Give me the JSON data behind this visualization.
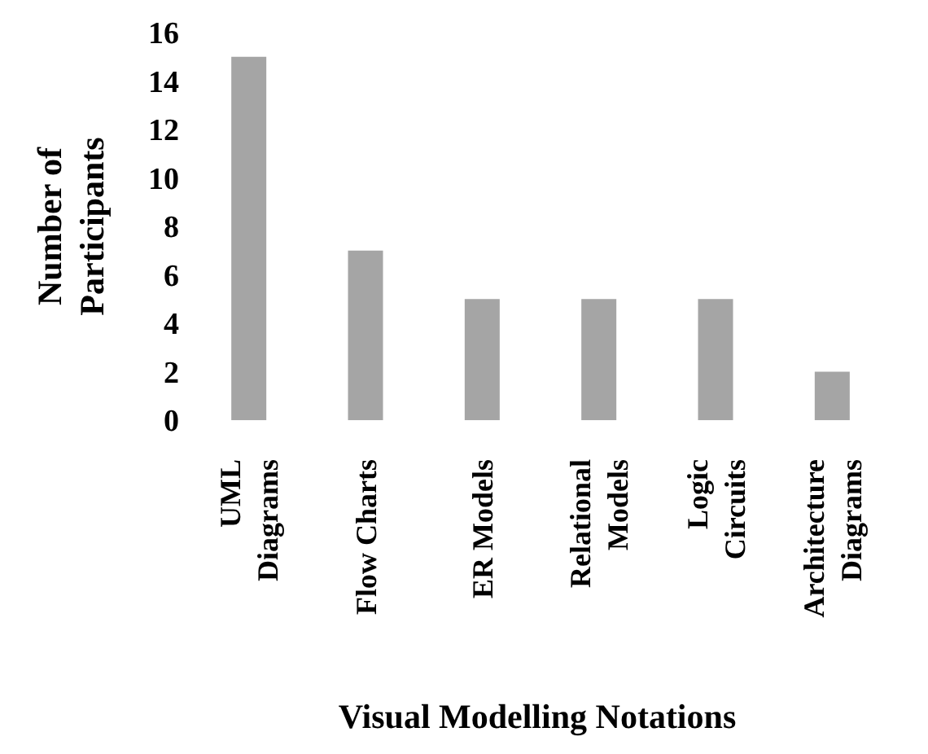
{
  "chart_data": {
    "type": "bar",
    "xlabel": "Visual Modelling Notations",
    "ylabel": "Number of Participants",
    "categories": [
      "UML Diagrams",
      "Flow Charts",
      "ER Models",
      "Relational Models",
      "Logic Circuits",
      "Architecture Diagrams"
    ],
    "values": [
      15,
      7,
      5,
      5,
      5,
      2
    ],
    "color": "#a5a5a5",
    "ylim": [
      0,
      16
    ],
    "yticks": [
      0,
      2,
      4,
      6,
      8,
      10,
      12,
      14,
      16
    ],
    "grid": false
  }
}
